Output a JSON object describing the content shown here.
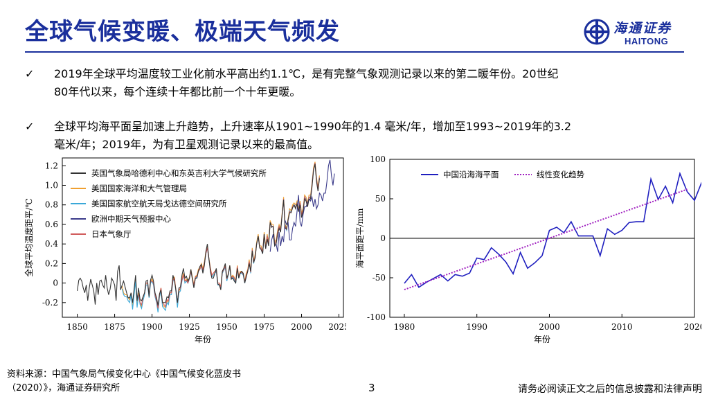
{
  "slide": {
    "title": "全球气候变暖、极端天气频发",
    "logo": {
      "cn": "海通证券",
      "en": "HAITONG"
    },
    "bullets": [
      {
        "line1": "2019年全球平均温度较工业化前水平高出约1.1℃，是有完整气象观测记录以来的第二暖年份。20世纪",
        "line2": "80年代以来，每个连续十年都比前一个十年更暖。"
      },
      {
        "line1": "全球平均海平面呈加速上升趋势，上升速率从1901~1990年的1.4 毫米/年，增加至1993~2019年的3.2",
        "line2": "毫米/年；2019年，为有卫星观测记录以来的最高值。"
      }
    ],
    "footer": {
      "source_line1": "资料来源：中国气象局气候变化中心《中国气候变化蓝皮书",
      "source_line2": "（2020）》，海通证券研究所",
      "page": "3",
      "disclaimer": "请务必阅读正文之后的信息披露和法律声明"
    }
  },
  "chart_data": [
    {
      "type": "line",
      "xlabel": "年份",
      "ylabel": "全球平均温度距平/℃",
      "xlim": [
        1840,
        2028
      ],
      "ylim": [
        -0.35,
        1.28
      ],
      "xticks": [
        "1850",
        "1875",
        "1900",
        "1925",
        "1950",
        "1975",
        "2000",
        "2025"
      ],
      "yticks": [
        "-0.2",
        "0",
        "0.2",
        "0.4",
        "0.6",
        "0.8",
        "1.0",
        "1.2"
      ],
      "legend": "top-left",
      "colors": [
        "#333333",
        "#f0a030",
        "#3aa8d8",
        "#3a3a8a",
        "#d05a5a"
      ],
      "series": [
        {
          "name": "英国气象局哈德利中心和东英吉利大学气候研究所",
          "start": 1850,
          "values": [
            -0.08,
            0.03,
            0.05,
            0.02,
            -0.05,
            -0.1,
            -0.02,
            -0.18,
            -0.05,
            0.04,
            -0.02,
            -0.08,
            -0.22,
            0.0,
            -0.12,
            0.02,
            0.03,
            -0.02,
            -0.05,
            0.08,
            -0.05,
            -0.12,
            -0.06,
            0.05,
            0.02,
            -0.02,
            -0.18,
            0.12,
            0.18,
            -0.07,
            -0.02,
            0.02,
            -0.04,
            -0.1,
            -0.15,
            -0.15,
            -0.1,
            -0.2,
            -0.06,
            0.08,
            -0.18,
            -0.05,
            -0.17,
            -0.18,
            -0.14,
            -0.1,
            0.02,
            0.03,
            -0.14,
            0.03,
            0.08,
            0.02,
            -0.1,
            -0.15,
            -0.23,
            -0.11,
            -0.07,
            -0.2,
            -0.2,
            -0.2,
            -0.14,
            -0.15,
            -0.08,
            -0.08,
            0.08,
            0.02,
            -0.07,
            -0.2,
            -0.05,
            -0.04,
            0.08,
            0.15,
            0.05,
            0.07,
            0.02,
            0.05,
            0.14,
            0.04,
            -0.05,
            0.05,
            0.05,
            0.12,
            0.17,
            0.19,
            0.1,
            0.18,
            0.32,
            0.4,
            0.26,
            0.12,
            0.05,
            0.05,
            0.1,
            0.15,
            -0.01,
            -0.02,
            -0.07,
            0.12,
            0.15,
            0.2,
            0.05,
            0.09,
            0.18,
            0.04,
            0.05,
            0.02,
            0.0,
            0.15,
            0.05,
            0.1,
            0.12,
            0.1,
            0.0,
            0.06,
            0.12,
            0.2,
            0.12,
            0.33,
            0.21,
            0.26,
            0.4,
            0.48,
            0.36,
            0.34,
            0.3,
            0.5,
            0.35,
            0.45,
            0.38,
            0.62,
            0.57,
            0.58,
            0.38,
            0.4,
            0.5,
            0.56,
            0.52,
            0.7,
            0.85,
            0.56,
            0.55,
            0.65,
            0.72,
            0.72,
            0.77,
            0.8,
            0.76,
            0.81,
            0.73,
            0.8,
            0.67,
            0.73,
            0.86,
            0.84,
            0.78,
            0.86,
            0.86,
            0.98,
            1.15,
            1.22,
            1.04,
            0.94,
            1.07
          ]
        },
        {
          "name": "美国国家海洋和大气管理局",
          "start": 1880,
          "values": [
            -0.03,
            -0.1,
            -0.12,
            -0.12,
            -0.15,
            -0.17,
            -0.1,
            -0.24,
            -0.1,
            0.05,
            -0.22,
            -0.1,
            -0.2,
            -0.24,
            -0.15,
            -0.1,
            0.0,
            0.0,
            -0.13,
            0.02,
            0.04,
            0.0,
            -0.12,
            -0.18,
            -0.28,
            -0.12,
            -0.05,
            -0.22,
            -0.24,
            -0.25,
            -0.18,
            -0.2,
            -0.1,
            -0.1,
            0.04,
            0.06,
            -0.08,
            -0.22,
            -0.08,
            -0.06,
            0.04,
            0.1,
            0.02,
            0.04,
            0.02,
            0.06,
            0.14,
            0.06,
            -0.02,
            0.07,
            0.08,
            0.14,
            0.16,
            0.2,
            0.15,
            0.22,
            0.32,
            0.38,
            0.26,
            0.16,
            0.08,
            0.1,
            0.12,
            0.14,
            0.0,
            0.0,
            -0.04,
            0.12,
            0.15,
            0.18,
            0.04,
            0.1,
            0.18,
            0.06,
            0.08,
            0.06,
            0.02,
            0.18,
            0.07,
            0.12,
            0.12,
            0.1,
            0.02,
            0.1,
            0.14,
            0.24,
            0.12,
            0.36,
            0.22,
            0.3,
            0.42,
            0.5,
            0.38,
            0.38,
            0.32,
            0.52,
            0.38,
            0.5,
            0.42,
            0.64,
            0.6,
            0.6,
            0.42,
            0.44,
            0.54,
            0.6,
            0.56,
            0.72,
            0.88,
            0.6,
            0.56,
            0.66,
            0.76,
            0.74,
            0.8,
            0.82,
            0.8,
            0.84,
            0.76,
            0.84,
            0.72,
            0.76,
            0.9,
            0.88,
            0.82,
            0.9,
            0.9,
            1.02,
            1.18,
            1.24,
            1.08,
            0.98,
            1.1
          ]
        },
        {
          "name": "美国国家航空航天局戈达德空间研究所",
          "start": 1880,
          "values": [
            -0.06,
            -0.12,
            -0.14,
            -0.14,
            -0.18,
            -0.2,
            -0.12,
            -0.27,
            -0.12,
            0.02,
            -0.25,
            -0.12,
            -0.22,
            -0.26,
            -0.18,
            -0.12,
            -0.02,
            -0.02,
            -0.15,
            0.0,
            0.02,
            -0.02,
            -0.14,
            -0.2,
            -0.3,
            -0.14,
            -0.08,
            -0.24,
            -0.26,
            -0.28,
            -0.2,
            -0.22,
            -0.12,
            -0.12,
            0.02,
            0.04,
            -0.1,
            -0.25,
            -0.1,
            -0.08,
            0.02,
            0.08,
            0.0,
            0.02,
            0.0,
            0.04,
            0.12,
            0.04,
            -0.04,
            0.05,
            0.06,
            0.12,
            0.14,
            0.18,
            0.12,
            0.2,
            0.3,
            0.36,
            0.24,
            0.14,
            0.06,
            0.08,
            0.1,
            0.12,
            -0.02,
            -0.02,
            -0.06,
            0.1,
            0.13,
            0.16,
            0.02,
            0.08,
            0.16,
            0.04,
            0.06,
            0.04,
            0.0,
            0.16,
            0.05,
            0.1,
            0.1,
            0.08,
            0.0,
            0.08,
            0.12,
            0.22,
            0.1,
            0.34,
            0.2,
            0.28,
            0.4,
            0.48,
            0.36,
            0.36,
            0.3,
            0.5,
            0.36,
            0.48,
            0.4,
            0.62,
            0.58,
            0.58,
            0.4,
            0.42,
            0.52,
            0.58,
            0.54,
            0.7,
            0.86,
            0.58,
            0.54,
            0.64,
            0.74,
            0.72,
            0.78,
            0.8,
            0.78,
            0.82,
            0.74,
            0.82,
            0.7,
            0.74,
            0.88,
            0.86,
            0.8,
            0.88,
            0.88,
            1.0,
            1.16,
            1.22,
            1.06,
            0.96,
            1.08
          ]
        },
        {
          "name": "欧洲中期天气预报中心",
          "start": 1979,
          "values": [
            0.32,
            0.44,
            0.5,
            0.38,
            0.4,
            0.32,
            0.52,
            0.38,
            0.48,
            0.42,
            0.64,
            0.6,
            0.62,
            0.44,
            0.44,
            0.56,
            0.62,
            0.58,
            0.74,
            0.9,
            0.62,
            0.58,
            0.7,
            0.78,
            0.78,
            0.82,
            0.86,
            0.84,
            0.88,
            0.78,
            0.86,
            0.76,
            0.8,
            0.92,
            0.9,
            0.84,
            0.92,
            0.92,
            1.04,
            1.2,
            1.26,
            1.1,
            1.0,
            1.12
          ]
        },
        {
          "name": "日本气象厅",
          "start": 1891,
          "values": [
            -0.12,
            -0.2,
            -0.22,
            -0.14,
            -0.1,
            0.0,
            0.0,
            -0.12,
            0.02,
            0.02,
            0.0,
            -0.12,
            -0.18,
            -0.26,
            -0.12,
            -0.05,
            -0.2,
            -0.22,
            -0.24,
            -0.17,
            -0.18,
            -0.1,
            -0.1,
            0.03,
            0.05,
            -0.08,
            -0.2,
            -0.07,
            -0.05,
            0.03,
            0.08,
            0.02,
            0.03,
            0.0,
            0.05,
            0.12,
            0.04,
            -0.02,
            0.06,
            0.07,
            0.12,
            0.14,
            0.18,
            0.14,
            0.2,
            0.3,
            0.36,
            0.25,
            0.15,
            0.08,
            0.1,
            0.12,
            0.13,
            0.0,
            0.0,
            -0.04,
            0.11,
            0.14,
            0.17,
            0.04,
            0.09,
            0.17,
            0.05,
            0.07,
            0.05,
            0.02,
            0.17,
            0.06,
            0.11,
            0.11,
            0.09,
            0.01,
            0.08,
            0.13,
            0.22,
            0.11,
            0.34,
            0.21,
            0.28,
            0.4,
            0.48,
            0.36,
            0.36,
            0.31,
            0.5,
            0.36,
            0.48,
            0.4,
            0.62,
            0.58,
            0.58,
            0.4,
            0.42,
            0.52,
            0.58,
            0.54,
            0.7,
            0.86,
            0.58,
            0.55,
            0.64,
            0.73,
            0.72,
            0.78,
            0.8,
            0.77,
            0.82,
            0.74,
            0.82,
            0.7,
            0.74,
            0.88,
            0.85,
            0.8,
            0.88,
            0.87,
            1.0,
            1.16,
            1.23,
            1.06,
            0.96,
            1.08
          ]
        }
      ]
    },
    {
      "type": "line",
      "xlabel": "年份",
      "ylabel": "海平面距平/mm",
      "xlim": [
        1978,
        2020
      ],
      "ylim": [
        -100,
        100
      ],
      "xticks": [
        "1980",
        "1990",
        "2000",
        "2010",
        "2020"
      ],
      "yticks": [
        "100",
        "50",
        "0",
        "-50",
        "-100"
      ],
      "zero_line": true,
      "legend": "top",
      "series": [
        {
          "name": "中国沿海海平面",
          "color": "#1f1fbf",
          "start": 1980,
          "values": [
            -57,
            -46,
            -62,
            -56,
            -51,
            -46,
            -54,
            -46,
            -48,
            -44,
            -25,
            -27,
            -12,
            -20,
            -30,
            -45,
            -18,
            -38,
            -31,
            -22,
            10,
            14,
            7,
            21,
            3,
            3,
            3,
            -22,
            12,
            5,
            10,
            20,
            21,
            21,
            75,
            49,
            66,
            45,
            82,
            59,
            48,
            71
          ]
        },
        {
          "name": "线性变化趋势",
          "color": "#a020c0",
          "dashed": true,
          "endpoints": [
            [
              1980,
              -65
            ],
            [
              2019,
              62
            ]
          ]
        }
      ]
    }
  ]
}
